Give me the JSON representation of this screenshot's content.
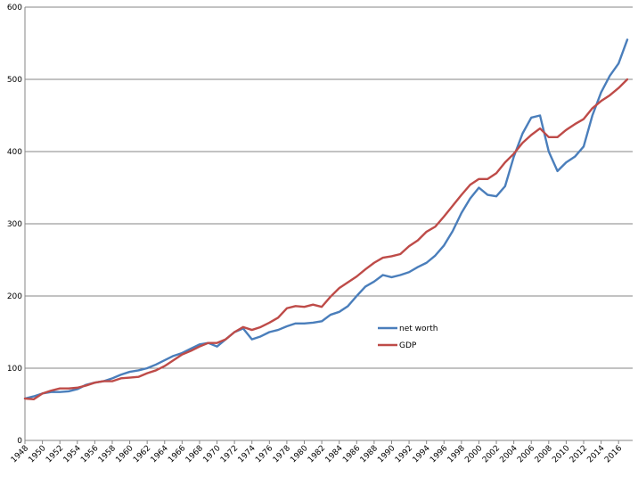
{
  "chart_data": {
    "type": "line",
    "title": "",
    "xlabel": "",
    "ylabel": "",
    "ylim": [
      0,
      600
    ],
    "xlim": [
      1948,
      2017
    ],
    "y_ticks": [
      0,
      100,
      200,
      300,
      400,
      500,
      600
    ],
    "y_tick_labels": [
      "0",
      "100",
      "200",
      "300",
      "400",
      "500",
      "600"
    ],
    "x_tick_labels": [
      "1948",
      "1950",
      "1952",
      "1954",
      "1956",
      "1958",
      "1960",
      "1962",
      "1964",
      "1966",
      "1968",
      "1970",
      "1972",
      "1974",
      "1976",
      "1978",
      "1980",
      "1982",
      "1984",
      "1986",
      "1988",
      "1990",
      "1992",
      "1994",
      "1996",
      "1998",
      "2000",
      "2002",
      "2004",
      "2006",
      "2008",
      "2010",
      "2012",
      "2014",
      "2016"
    ],
    "grid": "horizontal",
    "legend_position": "center-right",
    "series": [
      {
        "name": "net worth",
        "color": "#4A7EBB",
        "points": [
          [
            1948,
            58
          ],
          [
            1949,
            61
          ],
          [
            1950,
            65
          ],
          [
            1951,
            67
          ],
          [
            1952,
            67
          ],
          [
            1953,
            68
          ],
          [
            1954,
            71
          ],
          [
            1955,
            77
          ],
          [
            1956,
            80
          ],
          [
            1957,
            82
          ],
          [
            1958,
            86
          ],
          [
            1959,
            91
          ],
          [
            1960,
            95
          ],
          [
            1961,
            97
          ],
          [
            1962,
            100
          ],
          [
            1963,
            105
          ],
          [
            1964,
            111
          ],
          [
            1965,
            117
          ],
          [
            1966,
            121
          ],
          [
            1967,
            127
          ],
          [
            1968,
            133
          ],
          [
            1969,
            135
          ],
          [
            1970,
            130
          ],
          [
            1971,
            140
          ],
          [
            1972,
            150
          ],
          [
            1973,
            155
          ],
          [
            1974,
            140
          ],
          [
            1975,
            144
          ],
          [
            1976,
            150
          ],
          [
            1977,
            153
          ],
          [
            1978,
            158
          ],
          [
            1979,
            162
          ],
          [
            1980,
            162
          ],
          [
            1981,
            163
          ],
          [
            1982,
            165
          ],
          [
            1983,
            174
          ],
          [
            1984,
            178
          ],
          [
            1985,
            186
          ],
          [
            1986,
            200
          ],
          [
            1987,
            213
          ],
          [
            1988,
            220
          ],
          [
            1989,
            229
          ],
          [
            1990,
            226
          ],
          [
            1991,
            229
          ],
          [
            1992,
            233
          ],
          [
            1993,
            240
          ],
          [
            1994,
            246
          ],
          [
            1995,
            256
          ],
          [
            1996,
            270
          ],
          [
            1997,
            290
          ],
          [
            1998,
            315
          ],
          [
            1999,
            335
          ],
          [
            2000,
            350
          ],
          [
            2001,
            340
          ],
          [
            2002,
            338
          ],
          [
            2003,
            352
          ],
          [
            2004,
            393
          ],
          [
            2005,
            425
          ],
          [
            2006,
            447
          ],
          [
            2007,
            450
          ],
          [
            2008,
            400
          ],
          [
            2009,
            373
          ],
          [
            2010,
            385
          ],
          [
            2011,
            393
          ],
          [
            2012,
            407
          ],
          [
            2013,
            450
          ],
          [
            2014,
            482
          ],
          [
            2015,
            505
          ],
          [
            2016,
            522
          ],
          [
            2017,
            555
          ]
        ]
      },
      {
        "name": "GDP",
        "color": "#BE4B48",
        "points": [
          [
            1948,
            58
          ],
          [
            1949,
            57
          ],
          [
            1950,
            65
          ],
          [
            1951,
            69
          ],
          [
            1952,
            72
          ],
          [
            1953,
            72
          ],
          [
            1954,
            73
          ],
          [
            1955,
            76
          ],
          [
            1956,
            80
          ],
          [
            1957,
            82
          ],
          [
            1958,
            82
          ],
          [
            1959,
            86
          ],
          [
            1960,
            87
          ],
          [
            1961,
            88
          ],
          [
            1962,
            93
          ],
          [
            1963,
            97
          ],
          [
            1964,
            103
          ],
          [
            1965,
            111
          ],
          [
            1966,
            119
          ],
          [
            1967,
            124
          ],
          [
            1968,
            130
          ],
          [
            1969,
            135
          ],
          [
            1970,
            135
          ],
          [
            1971,
            140
          ],
          [
            1972,
            150
          ],
          [
            1973,
            157
          ],
          [
            1974,
            153
          ],
          [
            1975,
            157
          ],
          [
            1976,
            163
          ],
          [
            1977,
            170
          ],
          [
            1978,
            183
          ],
          [
            1979,
            186
          ],
          [
            1980,
            185
          ],
          [
            1981,
            188
          ],
          [
            1982,
            185
          ],
          [
            1983,
            199
          ],
          [
            1984,
            211
          ],
          [
            1985,
            219
          ],
          [
            1986,
            227
          ],
          [
            1987,
            237
          ],
          [
            1988,
            246
          ],
          [
            1989,
            253
          ],
          [
            1990,
            255
          ],
          [
            1991,
            258
          ],
          [
            1992,
            269
          ],
          [
            1993,
            277
          ],
          [
            1994,
            289
          ],
          [
            1995,
            296
          ],
          [
            1996,
            310
          ],
          [
            1997,
            325
          ],
          [
            1998,
            340
          ],
          [
            1999,
            354
          ],
          [
            2000,
            362
          ],
          [
            2001,
            362
          ],
          [
            2002,
            370
          ],
          [
            2003,
            385
          ],
          [
            2004,
            397
          ],
          [
            2005,
            412
          ],
          [
            2006,
            423
          ],
          [
            2007,
            432
          ],
          [
            2008,
            420
          ],
          [
            2009,
            420
          ],
          [
            2010,
            430
          ],
          [
            2011,
            438
          ],
          [
            2012,
            445
          ],
          [
            2013,
            460
          ],
          [
            2014,
            470
          ],
          [
            2015,
            478
          ],
          [
            2016,
            488
          ],
          [
            2017,
            500
          ]
        ]
      }
    ]
  }
}
